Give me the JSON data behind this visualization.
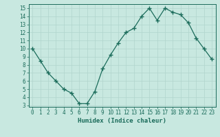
{
  "x": [
    0,
    1,
    2,
    3,
    4,
    5,
    6,
    7,
    8,
    9,
    10,
    11,
    12,
    13,
    14,
    15,
    16,
    17,
    18,
    19,
    20,
    21,
    22,
    23
  ],
  "y": [
    10,
    8.5,
    7.0,
    6.0,
    5.0,
    4.5,
    3.2,
    3.2,
    4.7,
    7.5,
    9.2,
    10.7,
    12.0,
    12.5,
    14.0,
    15.0,
    13.5,
    15.0,
    14.5,
    14.2,
    13.2,
    11.3,
    10.0,
    8.7
  ],
  "line_color": "#1a6b5a",
  "marker": "+",
  "marker_size": 4,
  "bg_color": "#c8e8e0",
  "grid_color": "#b0d4cc",
  "xlabel": "Humidex (Indice chaleur)",
  "xlim": [
    -0.5,
    23.5
  ],
  "ylim": [
    2.8,
    15.5
  ],
  "xticks": [
    0,
    1,
    2,
    3,
    4,
    5,
    6,
    7,
    8,
    9,
    10,
    11,
    12,
    13,
    14,
    15,
    16,
    17,
    18,
    19,
    20,
    21,
    22,
    23
  ],
  "yticks": [
    3,
    4,
    5,
    6,
    7,
    8,
    9,
    10,
    11,
    12,
    13,
    14,
    15
  ],
  "tick_fontsize": 5.5,
  "xlabel_fontsize": 6.5
}
